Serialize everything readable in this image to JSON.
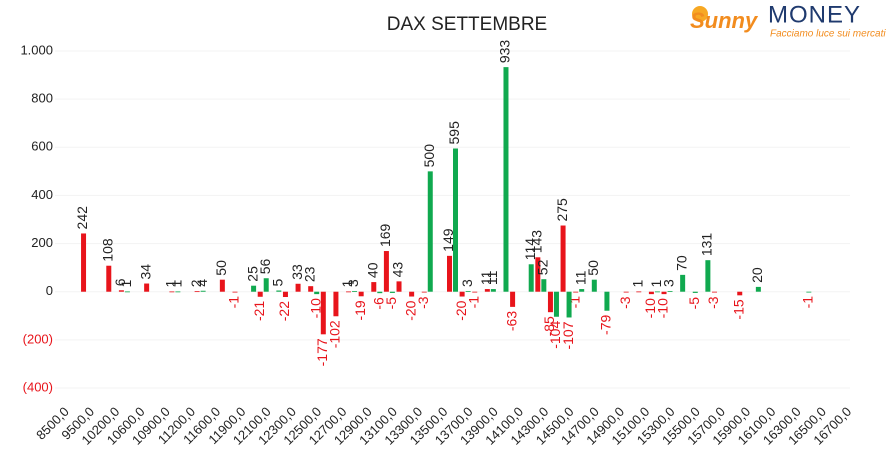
{
  "chart_data": {
    "type": "bar",
    "title": "DAX SETTEMBRE",
    "logo": {
      "name": "Sunny",
      "name2": "MONEY",
      "tagline": "Facciamo luce sui mercati"
    },
    "categories": [
      "8500,0",
      null,
      "9500,0",
      null,
      "10200,0",
      null,
      "10600,0",
      null,
      "10900,0",
      null,
      "11200,0",
      null,
      "11600,0",
      null,
      "11900,0",
      null,
      "12100,0",
      null,
      "12300,0",
      null,
      "12500,0",
      null,
      "12700,0",
      null,
      "12900,0",
      null,
      "13100,0",
      null,
      "13300,0",
      null,
      "13500,0",
      null,
      "13700,0",
      null,
      "13900,0",
      null,
      "14100,0",
      null,
      "14300,0",
      null,
      "14500,0",
      null,
      "14700,0",
      null,
      "14900,0",
      null,
      "15100,0",
      null,
      "15300,0",
      null,
      "15500,0",
      null,
      "15700,0",
      null,
      "15900,0",
      null,
      "16100,0",
      null,
      "16300,0",
      null,
      "16500,0",
      null,
      "16700,0"
    ],
    "series": [
      {
        "color": "#e8141b",
        "values": [
          null,
          null,
          242,
          null,
          108,
          6,
          null,
          34,
          null,
          1,
          null,
          2,
          null,
          50,
          -1,
          null,
          -21,
          null,
          -22,
          33,
          23,
          -177,
          -102,
          1,
          -19,
          40,
          169,
          43,
          -20,
          -3,
          null,
          149,
          -20,
          -1,
          11,
          null,
          -63,
          null,
          143,
          -85,
          275,
          -1,
          null,
          null,
          null,
          -3,
          1,
          -10,
          -10,
          null,
          null,
          null,
          -3,
          null,
          -15,
          null,
          null,
          null,
          null,
          null,
          null,
          null,
          null
        ]
      },
      {
        "color": "#10a94f",
        "values": [
          null,
          null,
          null,
          null,
          null,
          1,
          null,
          null,
          null,
          1,
          null,
          4,
          null,
          null,
          null,
          25,
          56,
          5,
          null,
          null,
          -10,
          null,
          null,
          3,
          null,
          -6,
          -5,
          null,
          null,
          500,
          null,
          595,
          3,
          null,
          11,
          933,
          null,
          114,
          52,
          -104,
          -107,
          11,
          50,
          -79,
          null,
          null,
          null,
          1,
          3,
          70,
          -5,
          131,
          null,
          null,
          null,
          20,
          null,
          null,
          null,
          -1,
          null,
          null,
          null
        ]
      }
    ],
    "ylim": [
      -400,
      1000
    ],
    "yticks": [
      {
        "value": 1000,
        "label": "1.000"
      },
      800,
      600,
      400,
      200,
      0,
      {
        "value": -200,
        "label": "(200)"
      },
      {
        "value": -400,
        "label": "(400)"
      }
    ],
    "grid": true
  }
}
